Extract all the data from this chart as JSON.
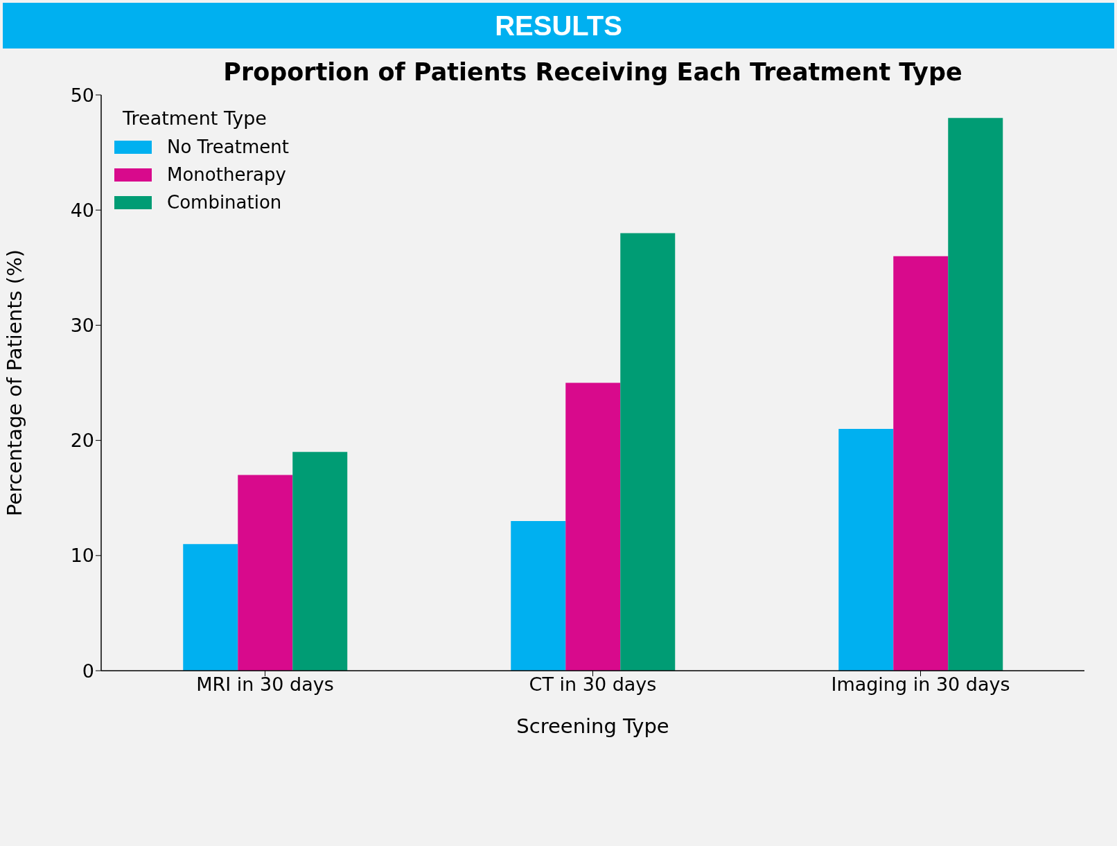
{
  "chart_data": {
    "type": "bar",
    "title": "Proportion of Patients Receiving Each Treatment Type",
    "annotations": [
      "RESULTS"
    ],
    "xlabel": "Screening Type",
    "ylabel": "Percentage of Patients (%)",
    "legend_title": "Treatment Type",
    "categories": [
      "MRI in 30 days",
      "CT in 30 days",
      "Imaging in 30 days"
    ],
    "series": [
      {
        "name": "No Treatment",
        "color": "#00b0f0",
        "values": [
          11,
          13,
          21
        ]
      },
      {
        "name": "Monotherapy",
        "color": "#d80a8c",
        "values": [
          17,
          25,
          36
        ]
      },
      {
        "name": "Combination",
        "color": "#009c74",
        "values": [
          19,
          38,
          48
        ]
      }
    ],
    "ylim": [
      0,
      50
    ],
    "yticks": [
      0,
      10,
      20,
      30,
      40,
      50
    ],
    "grid": false,
    "legend": "top left"
  }
}
